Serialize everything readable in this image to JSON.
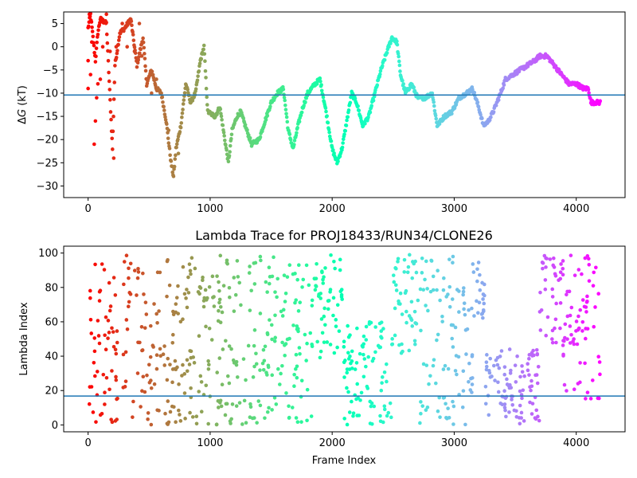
{
  "chart_data": [
    {
      "type": "scatter",
      "title": "",
      "xlabel": "",
      "ylabel": "ΔG (kT)",
      "ylabel_symbol": "Δ",
      "ylabel_var": "G",
      "ylabel_unit": " (kT)",
      "xlim": [
        -200,
        4400
      ],
      "ylim": [
        -32.5,
        7.5
      ],
      "xticks": [
        0,
        1000,
        2000,
        3000,
        4000
      ],
      "yticks": [
        5,
        0,
        -5,
        -10,
        -15,
        -20,
        -25,
        -30
      ],
      "hline": -10.4,
      "hline_color": "#1f77b4",
      "colormap": "rainbow (red at frame 0 → violet at frame 4200)",
      "x_max": 4200,
      "trace_points": [
        [
          0,
          4
        ],
        [
          20,
          7
        ],
        [
          40,
          2
        ],
        [
          60,
          -3
        ],
        [
          80,
          3
        ],
        [
          100,
          6
        ],
        [
          150,
          5
        ],
        [
          200,
          -22
        ],
        [
          220,
          -4
        ],
        [
          260,
          3
        ],
        [
          300,
          4
        ],
        [
          350,
          6
        ],
        [
          400,
          -4
        ],
        [
          450,
          2
        ],
        [
          480,
          -8
        ],
        [
          520,
          -5
        ],
        [
          560,
          -9
        ],
        [
          600,
          -10
        ],
        [
          640,
          -16
        ],
        [
          680,
          -25
        ],
        [
          700,
          -28
        ],
        [
          720,
          -22
        ],
        [
          760,
          -17
        ],
        [
          800,
          -8
        ],
        [
          840,
          -12
        ],
        [
          880,
          -10
        ],
        [
          920,
          -3
        ],
        [
          950,
          0
        ],
        [
          980,
          -14
        ],
        [
          1040,
          -15
        ],
        [
          1080,
          -13
        ],
        [
          1120,
          -20
        ],
        [
          1150,
          -25
        ],
        [
          1180,
          -18
        ],
        [
          1220,
          -15
        ],
        [
          1250,
          -14
        ],
        [
          1300,
          -18
        ],
        [
          1340,
          -21
        ],
        [
          1400,
          -20
        ],
        [
          1450,
          -16
        ],
        [
          1500,
          -12
        ],
        [
          1550,
          -10
        ],
        [
          1600,
          -9
        ],
        [
          1640,
          -18
        ],
        [
          1680,
          -22
        ],
        [
          1720,
          -17
        ],
        [
          1760,
          -13
        ],
        [
          1800,
          -10
        ],
        [
          1860,
          -8
        ],
        [
          1900,
          -7
        ],
        [
          1950,
          -14
        ],
        [
          2000,
          -22
        ],
        [
          2040,
          -25
        ],
        [
          2080,
          -22
        ],
        [
          2120,
          -16
        ],
        [
          2160,
          -10
        ],
        [
          2200,
          -12
        ],
        [
          2250,
          -17
        ],
        [
          2300,
          -15
        ],
        [
          2350,
          -10
        ],
        [
          2400,
          -5
        ],
        [
          2450,
          -1
        ],
        [
          2490,
          2
        ],
        [
          2530,
          1
        ],
        [
          2560,
          -6
        ],
        [
          2600,
          -10
        ],
        [
          2650,
          -8
        ],
        [
          2700,
          -11
        ],
        [
          2760,
          -11
        ],
        [
          2820,
          -10
        ],
        [
          2860,
          -17
        ],
        [
          2920,
          -15
        ],
        [
          2980,
          -14
        ],
        [
          3040,
          -11
        ],
        [
          3100,
          -10
        ],
        [
          3150,
          -9
        ],
        [
          3200,
          -13
        ],
        [
          3240,
          -17
        ],
        [
          3280,
          -16
        ],
        [
          3320,
          -14
        ],
        [
          3380,
          -10
        ],
        [
          3420,
          -7
        ],
        [
          3480,
          -6
        ],
        [
          3540,
          -5
        ],
        [
          3600,
          -4
        ],
        [
          3660,
          -3
        ],
        [
          3700,
          -2
        ],
        [
          3760,
          -2
        ],
        [
          3820,
          -4
        ],
        [
          3880,
          -6
        ],
        [
          3940,
          -8
        ],
        [
          4000,
          -8
        ],
        [
          4060,
          -9
        ],
        [
          4100,
          -9
        ],
        [
          4120,
          -12
        ],
        [
          4200,
          -12
        ]
      ],
      "scatter_points": [
        [
          0,
          -3
        ],
        [
          0,
          -9
        ],
        [
          10,
          7
        ],
        [
          20,
          -6
        ],
        [
          30,
          1
        ],
        [
          50,
          -21
        ],
        [
          60,
          -16
        ],
        [
          70,
          -11
        ],
        [
          80,
          -8
        ],
        [
          100,
          -7
        ],
        [
          120,
          0
        ],
        [
          150,
          7
        ],
        [
          180,
          -1
        ],
        [
          210,
          -24
        ],
        [
          230,
          0
        ],
        [
          280,
          5
        ],
        [
          320,
          0
        ],
        [
          380,
          -1
        ],
        [
          420,
          5
        ],
        [
          440,
          -2
        ],
        [
          520,
          -10
        ],
        [
          560,
          -7
        ],
        [
          660,
          -18
        ],
        [
          740,
          -23
        ]
      ]
    },
    {
      "type": "scatter",
      "title": "Lambda Trace for PROJ18433/RUN34/CLONE26",
      "xlabel": "Frame Index",
      "ylabel": "Lambda Index",
      "xlim": [
        -200,
        4400
      ],
      "ylim": [
        -4,
        104
      ],
      "xticks": [
        0,
        1000,
        2000,
        3000,
        4000
      ],
      "yticks": [
        0,
        20,
        40,
        60,
        80,
        100
      ],
      "hline": 16.8,
      "hline_color": "#1f77b4",
      "colormap": "rainbow (red at frame 0 → violet at frame 4200)",
      "x_max": 4200,
      "points_per_100_frames": 22,
      "segments": [
        {
          "x": [
            0,
            60
          ],
          "y": [
            0,
            99
          ]
        },
        {
          "x": [
            60,
            1000
          ],
          "y": [
            0,
            99
          ]
        },
        {
          "x": [
            1000,
            1500
          ],
          "y": [
            0,
            99
          ]
        },
        {
          "x": [
            1500,
            1900
          ],
          "y": [
            0,
            99
          ]
        },
        {
          "x": [
            1900,
            2100
          ],
          "y": [
            30,
            99
          ]
        },
        {
          "x": [
            2100,
            2500
          ],
          "y": [
            0,
            60
          ]
        },
        {
          "x": [
            2500,
            2700
          ],
          "y": [
            40,
            99
          ]
        },
        {
          "x": [
            2700,
            3000
          ],
          "y": [
            0,
            99
          ]
        },
        {
          "x": [
            3000,
            3150
          ],
          "y": [
            0,
            80
          ]
        },
        {
          "x": [
            3150,
            3250
          ],
          "y": [
            60,
            99
          ]
        },
        {
          "x": [
            3250,
            3700
          ],
          "y": [
            0,
            45
          ]
        },
        {
          "x": [
            3700,
            3900
          ],
          "y": [
            40,
            99
          ]
        },
        {
          "x": [
            3900,
            4200
          ],
          "y": [
            15,
            99
          ]
        }
      ]
    }
  ]
}
